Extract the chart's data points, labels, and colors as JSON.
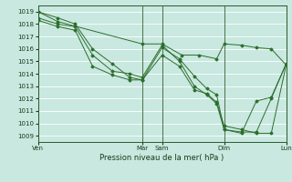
{
  "title": "Pression niveau de la mer( hPa )",
  "background_color": "#c8e8e0",
  "grid_color": "#ffffff",
  "line_color": "#2d6e2d",
  "ylim": [
    1008.5,
    1019.5
  ],
  "yticks": [
    1009,
    1010,
    1011,
    1012,
    1013,
    1014,
    1015,
    1016,
    1017,
    1018,
    1019
  ],
  "xtick_positions": [
    0.0,
    0.42,
    0.5,
    0.75,
    1.0
  ],
  "xtick_labels": [
    "Ven",
    "Mar",
    "Sam",
    "Dim",
    "Lun"
  ],
  "vlines": [
    0.0,
    0.42,
    0.5,
    0.75,
    1.0
  ],
  "lines": [
    {
      "x": [
        0.0,
        0.08,
        0.42,
        0.5,
        0.58,
        0.65,
        0.72,
        0.75,
        0.82,
        0.88,
        0.94,
        1.0
      ],
      "y": [
        1019.0,
        1018.2,
        1016.4,
        1016.4,
        1015.5,
        1015.5,
        1015.2,
        1016.4,
        1016.3,
        1016.1,
        1016.0,
        1014.7
      ]
    },
    {
      "x": [
        0.0,
        0.08,
        0.15,
        0.22,
        0.3,
        0.37,
        0.42,
        0.5,
        0.57,
        0.63,
        0.68,
        0.72,
        0.75,
        0.82,
        0.88,
        0.94,
        1.0
      ],
      "y": [
        1019.0,
        1018.5,
        1018.0,
        1016.0,
        1014.8,
        1013.7,
        1013.5,
        1015.5,
        1014.6,
        1012.7,
        1012.4,
        1011.7,
        1009.8,
        1009.5,
        1009.2,
        1009.2,
        1014.7
      ]
    },
    {
      "x": [
        0.0,
        0.08,
        0.15,
        0.22,
        0.3,
        0.37,
        0.42,
        0.5,
        0.57,
        0.63,
        0.68,
        0.72,
        0.75,
        0.82,
        0.88,
        0.94,
        1.0
      ],
      "y": [
        1018.5,
        1018.0,
        1017.8,
        1015.5,
        1014.2,
        1014.0,
        1013.7,
        1016.3,
        1015.0,
        1013.0,
        1012.3,
        1011.6,
        1009.5,
        1009.3,
        1009.3,
        1012.0,
        1014.8
      ]
    },
    {
      "x": [
        0.0,
        0.08,
        0.15,
        0.22,
        0.3,
        0.37,
        0.42,
        0.5,
        0.57,
        0.63,
        0.68,
        0.72,
        0.75,
        0.82,
        0.88,
        0.94,
        1.0
      ],
      "y": [
        1018.3,
        1017.8,
        1017.5,
        1014.6,
        1013.9,
        1013.5,
        1013.5,
        1016.1,
        1015.2,
        1013.8,
        1012.8,
        1012.3,
        1009.5,
        1009.2,
        1011.8,
        1012.1,
        1014.8
      ]
    }
  ],
  "figsize": [
    3.2,
    2.0
  ],
  "dpi": 100
}
